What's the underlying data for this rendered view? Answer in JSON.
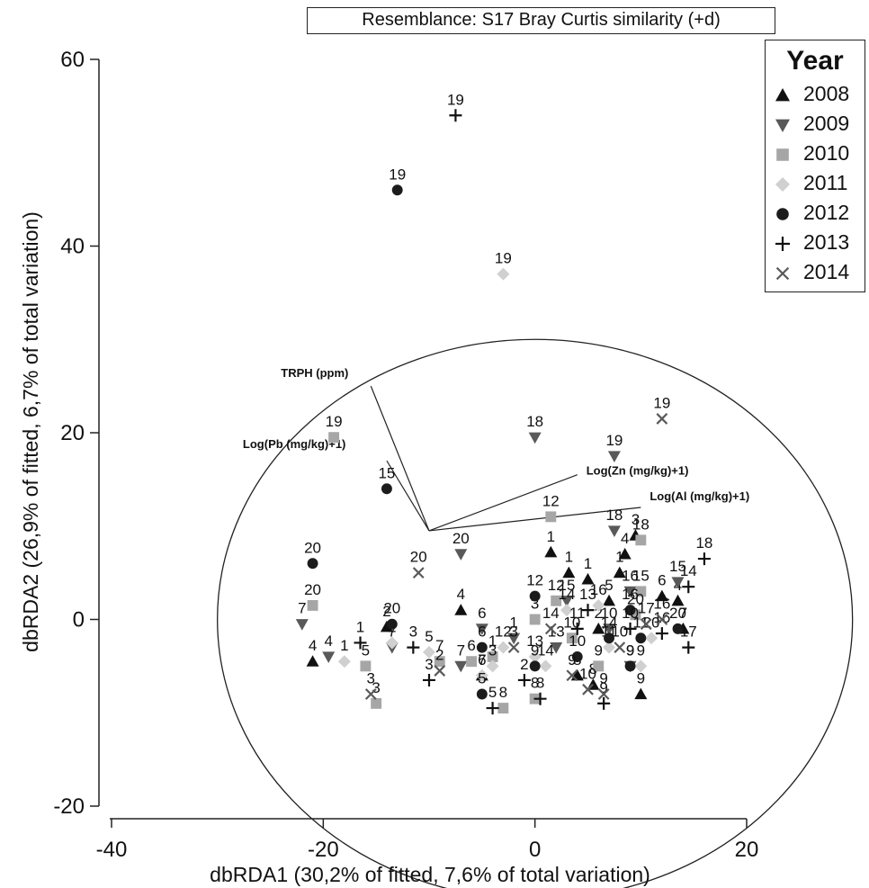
{
  "chart_data": {
    "type": "scatter",
    "title": "Resemblance: S17 Bray Curtis similarity (+d)",
    "xlabel": "dbRDA1 (30,2% of fitted, 7,6% of total variation)",
    "ylabel": "dbRDA2 (26,9% of fitted, 6,7% of total variation)",
    "xlim": [
      -40,
      20
    ],
    "ylim": [
      -20,
      60
    ],
    "xticks": [
      -40,
      -20,
      0,
      20
    ],
    "yticks": [
      -20,
      0,
      20,
      40,
      60
    ],
    "legend": {
      "title": "Year",
      "position": "top-right",
      "entries": [
        {
          "label": "2008",
          "marker": "triangle-up",
          "color": "#111111"
        },
        {
          "label": "2009",
          "marker": "triangle-down",
          "color": "#595959"
        },
        {
          "label": "2010",
          "marker": "square",
          "color": "#a6a6a6"
        },
        {
          "label": "2011",
          "marker": "diamond",
          "color": "#d0d0d0"
        },
        {
          "label": "2012",
          "marker": "circle",
          "color": "#1c1c1c"
        },
        {
          "label": "2013",
          "marker": "plus",
          "color": "#111111"
        },
        {
          "label": "2014",
          "marker": "cross",
          "color": "#595959"
        }
      ]
    },
    "circle": {
      "center": [
        0,
        0
      ],
      "radius": 30
    },
    "vectors": [
      {
        "label": "TRPH (ppm)",
        "tip": [
          -15.5,
          25
        ]
      },
      {
        "label": "Log(Pb (mg/kg)+1)",
        "tip": [
          -14,
          17
        ]
      },
      {
        "label": "Log(Zn (mg/kg)+1)",
        "tip": [
          4,
          15.5
        ]
      },
      {
        "label": "Log(Al (mg/kg)+1)",
        "tip": [
          10,
          12
        ]
      }
    ],
    "series": [
      {
        "name": "2008",
        "points": [
          {
            "x": 1.5,
            "y": 7.2,
            "label": "1"
          },
          {
            "x": 3.2,
            "y": 5,
            "label": "1"
          },
          {
            "x": 5,
            "y": 4.3,
            "label": "1"
          },
          {
            "x": 8,
            "y": 5,
            "label": "1"
          },
          {
            "x": 8.5,
            "y": 7,
            "label": "4"
          },
          {
            "x": 9.5,
            "y": 9,
            "label": "3"
          },
          {
            "x": 13.5,
            "y": 2,
            "label": "4"
          },
          {
            "x": 12,
            "y": 2.5,
            "label": "6"
          },
          {
            "x": 7,
            "y": 2,
            "label": "5"
          },
          {
            "x": -7,
            "y": 1,
            "label": "4"
          },
          {
            "x": -14,
            "y": -0.8,
            "label": "2"
          },
          {
            "x": -21,
            "y": -4.5,
            "label": "4"
          },
          {
            "x": 4,
            "y": -6,
            "label": "8"
          },
          {
            "x": 5.5,
            "y": -7,
            "label": "8"
          },
          {
            "x": 10,
            "y": -8,
            "label": "9"
          },
          {
            "x": -5,
            "y": -6,
            "label": "6"
          },
          {
            "x": 14,
            "y": -1,
            "label": "7"
          },
          {
            "x": 6,
            "y": -1,
            "label": "2"
          }
        ]
      },
      {
        "name": "2009",
        "points": [
          {
            "x": -22,
            "y": -0.5,
            "label": "7"
          },
          {
            "x": -13.5,
            "y": -3,
            "label": "7"
          },
          {
            "x": -7,
            "y": 7,
            "label": "20"
          },
          {
            "x": 0,
            "y": 19.5,
            "label": "18"
          },
          {
            "x": 7.5,
            "y": 17.5,
            "label": "19"
          },
          {
            "x": 7.5,
            "y": 9.5,
            "label": "18"
          },
          {
            "x": 9,
            "y": 3,
            "label": "16"
          },
          {
            "x": 3,
            "y": 2,
            "label": "15"
          },
          {
            "x": -5,
            "y": -1,
            "label": "6"
          },
          {
            "x": -7,
            "y": -5,
            "label": "7"
          },
          {
            "x": -19.5,
            "y": -4,
            "label": "4"
          },
          {
            "x": 7,
            "y": -1,
            "label": "10"
          },
          {
            "x": 2,
            "y": -3,
            "label": "13"
          },
          {
            "x": 13.5,
            "y": 4,
            "label": "15"
          },
          {
            "x": 9,
            "y": -5,
            "label": "9"
          },
          {
            "x": -2,
            "y": -2,
            "label": "1"
          }
        ]
      },
      {
        "name": "2010",
        "points": [
          {
            "x": -19,
            "y": 19.5,
            "label": "19"
          },
          {
            "x": -21,
            "y": 1.5,
            "label": "20"
          },
          {
            "x": 1.5,
            "y": 11,
            "label": "12"
          },
          {
            "x": 10,
            "y": 8.5,
            "label": "18"
          },
          {
            "x": 2,
            "y": 2,
            "label": "12"
          },
          {
            "x": 0,
            "y": 0,
            "label": "3"
          },
          {
            "x": -9,
            "y": -4.5,
            "label": "7"
          },
          {
            "x": -6,
            "y": -4.5,
            "label": "6"
          },
          {
            "x": -3,
            "y": -9.5,
            "label": "8"
          },
          {
            "x": -15,
            "y": -9,
            "label": "3"
          },
          {
            "x": -16,
            "y": -5,
            "label": "5"
          },
          {
            "x": 0,
            "y": -8.5,
            "label": "8"
          },
          {
            "x": 3.5,
            "y": -2,
            "label": "10"
          },
          {
            "x": 10,
            "y": 3,
            "label": "15"
          },
          {
            "x": 6,
            "y": -5,
            "label": "9"
          },
          {
            "x": -4,
            "y": -4,
            "label": "1"
          },
          {
            "x": 9.5,
            "y": 0.5,
            "label": "20"
          }
        ]
      },
      {
        "name": "2011",
        "points": [
          {
            "x": -3,
            "y": 37,
            "label": "19"
          },
          {
            "x": -18,
            "y": -4.5,
            "label": "1"
          },
          {
            "x": -13.5,
            "y": -2.5,
            "label": "2"
          },
          {
            "x": -10,
            "y": -3.5,
            "label": "5"
          },
          {
            "x": -5,
            "y": -6,
            "label": "7"
          },
          {
            "x": -3,
            "y": -3,
            "label": "12"
          },
          {
            "x": 1,
            "y": -5,
            "label": "14"
          },
          {
            "x": 3,
            "y": 1,
            "label": "14"
          },
          {
            "x": 6,
            "y": 1.5,
            "label": "16"
          },
          {
            "x": 11,
            "y": -2,
            "label": "20"
          },
          {
            "x": 7,
            "y": -3,
            "label": "11"
          },
          {
            "x": 10,
            "y": -5,
            "label": "9"
          },
          {
            "x": 0,
            "y": -4,
            "label": "13"
          },
          {
            "x": -4,
            "y": -5,
            "label": "3"
          }
        ]
      },
      {
        "name": "2012",
        "points": [
          {
            "x": -13,
            "y": 46,
            "label": "19"
          },
          {
            "x": -14,
            "y": 14,
            "label": "15"
          },
          {
            "x": -21,
            "y": 6,
            "label": "20"
          },
          {
            "x": -13.5,
            "y": -0.5,
            "label": "20"
          },
          {
            "x": -5,
            "y": -3,
            "label": "6"
          },
          {
            "x": -5,
            "y": -8,
            "label": "5"
          },
          {
            "x": 0,
            "y": 2.5,
            "label": "12"
          },
          {
            "x": 9,
            "y": 1,
            "label": "16"
          },
          {
            "x": 10,
            "y": -2,
            "label": "11"
          },
          {
            "x": 9,
            "y": -5,
            "label": "9"
          },
          {
            "x": 0,
            "y": -5,
            "label": "9"
          },
          {
            "x": 13.5,
            "y": -1,
            "label": "20"
          },
          {
            "x": 7,
            "y": -2,
            "label": "14"
          },
          {
            "x": 4,
            "y": -4,
            "label": "10"
          }
        ]
      },
      {
        "name": "2013",
        "points": [
          {
            "x": -7.5,
            "y": 54,
            "label": "19"
          },
          {
            "x": 16,
            "y": 6.5,
            "label": "18"
          },
          {
            "x": 14.5,
            "y": 3.5,
            "label": "14"
          },
          {
            "x": 14.5,
            "y": -3,
            "label": "17"
          },
          {
            "x": 12,
            "y": -1.5,
            "label": "16"
          },
          {
            "x": -11.5,
            "y": -3,
            "label": "3"
          },
          {
            "x": -10,
            "y": -6.5,
            "label": "3"
          },
          {
            "x": -4,
            "y": -9.5,
            "label": "5"
          },
          {
            "x": -1,
            "y": -6.5,
            "label": "2"
          },
          {
            "x": 0.5,
            "y": -8.5,
            "label": "8"
          },
          {
            "x": 4,
            "y": -1,
            "label": "11"
          },
          {
            "x": 6.5,
            "y": -9,
            "label": "9"
          },
          {
            "x": 9,
            "y": -1,
            "label": "10"
          },
          {
            "x": -16.5,
            "y": -2.5,
            "label": "1"
          },
          {
            "x": 5,
            "y": 1,
            "label": "13"
          }
        ]
      },
      {
        "name": "2014",
        "points": [
          {
            "x": 12,
            "y": 21.5,
            "label": "19"
          },
          {
            "x": -11,
            "y": 5,
            "label": "20"
          },
          {
            "x": -15.5,
            "y": -8,
            "label": "3"
          },
          {
            "x": -9,
            "y": -5.5,
            "label": "2"
          },
          {
            "x": 1.5,
            "y": -1,
            "label": "14"
          },
          {
            "x": 3.5,
            "y": -6,
            "label": "9"
          },
          {
            "x": 5,
            "y": -7.5,
            "label": "10"
          },
          {
            "x": 8,
            "y": -3,
            "label": "10"
          },
          {
            "x": 12,
            "y": 0,
            "label": "16"
          },
          {
            "x": -2,
            "y": -3,
            "label": "3"
          },
          {
            "x": 6.5,
            "y": -8,
            "label": "9"
          },
          {
            "x": 10.5,
            "y": -0.5,
            "label": "17"
          }
        ]
      }
    ]
  }
}
